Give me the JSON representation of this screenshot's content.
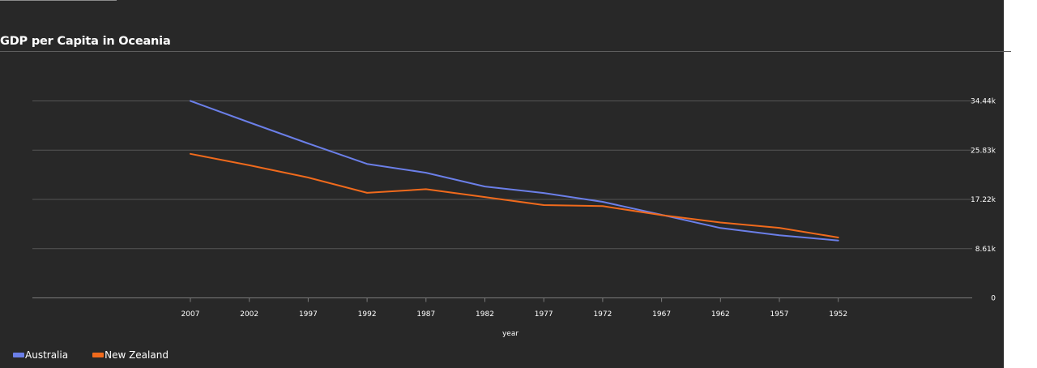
{
  "chart_data": {
    "type": "line",
    "title": "GDP per Capita in Oceania",
    "xlabel": "year",
    "ylabel": "",
    "categories": [
      "2007",
      "2002",
      "1997",
      "1992",
      "1987",
      "1982",
      "1977",
      "1972",
      "1967",
      "1962",
      "1957",
      "1952"
    ],
    "y_ticks": [
      "0",
      "8.61k",
      "17.22k",
      "25.83k",
      "34.44k"
    ],
    "y_tick_values": [
      0,
      8610,
      17220,
      25830,
      34440
    ],
    "ylim": [
      0,
      34440
    ],
    "y_axis_side": "right",
    "grid": true,
    "legend_position": "bottom-left",
    "series": [
      {
        "name": "Australia",
        "color": "#6b7fe8",
        "values": [
          34435,
          30688,
          26998,
          23425,
          21889,
          19477,
          18334,
          16789,
          14526,
          12217,
          10950,
          10040
        ]
      },
      {
        "name": "New Zealand",
        "color": "#f06a1c",
        "values": [
          25185,
          23190,
          21050,
          18363,
          19007,
          17632,
          16234,
          16046,
          14464,
          13176,
          12247,
          10557
        ]
      }
    ]
  }
}
